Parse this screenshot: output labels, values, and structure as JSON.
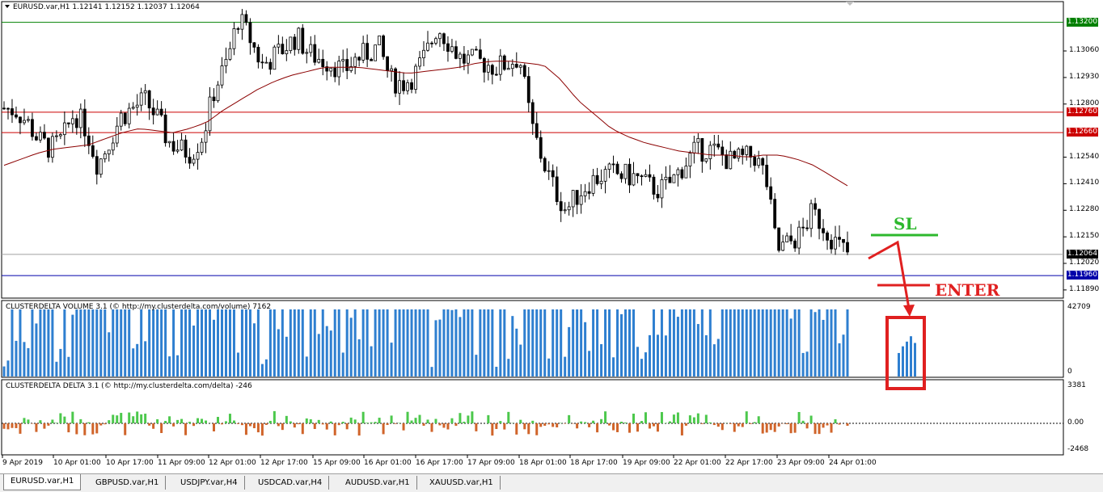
{
  "main_chart": {
    "header": "EURUSD.var,H1  1.12141 1.12152 1.12037 1.12064",
    "price_scale": [
      "1.13060",
      "1.12930",
      "1.12800",
      "1.12540",
      "1.12410",
      "1.12280",
      "1.12150",
      "1.12020",
      "1.11890"
    ],
    "level_labels": [
      {
        "text": "1.13200",
        "price": 1.132,
        "color": "#008000"
      },
      {
        "text": "1.12760",
        "price": 1.1276,
        "color": "#cc0000"
      },
      {
        "text": "1.12660",
        "price": 1.1266,
        "color": "#cc0000"
      },
      {
        "text": "1.12064",
        "price": 1.12064,
        "color": "#000000"
      },
      {
        "text": "1.11960",
        "price": 1.1196,
        "color": "#0000aa"
      }
    ],
    "annotations": {
      "sl": "SL",
      "enter": "ENTER"
    }
  },
  "volume_panel": {
    "header": "CLUSTERDELTA VOLUME 3.1 (© http://my.clusterdelta.com/volume) 7162",
    "scale_max": "42709",
    "scale_min": "0"
  },
  "delta_panel": {
    "header": "CLUSTERDELTA DELTA 3.1 (© http://my.clusterdelta.com/delta) -246",
    "scale_top": "3381",
    "scale_zero": "0.00",
    "scale_bottom": "-2468"
  },
  "time_axis": [
    "9 Apr 2019",
    "10 Apr 01:00",
    "10 Apr 17:00",
    "11 Apr 09:00",
    "12 Apr 01:00",
    "12 Apr 17:00",
    "15 Apr 09:00",
    "16 Apr 01:00",
    "16 Apr 17:00",
    "17 Apr 09:00",
    "18 Apr 01:00",
    "18 Apr 17:00",
    "19 Apr 09:00",
    "22 Apr 01:00",
    "22 Apr 17:00",
    "23 Apr 09:00",
    "24 Apr 01:00"
  ],
  "tabs": [
    "EURUSD.var,H1",
    "GBPUSD.var,H1",
    "USDJPY.var,H4",
    "USDCAD.var,H4",
    "AUDUSD.var,H1",
    "XAUUSD.var,H1"
  ],
  "colors": {
    "bull": "#000000",
    "bear": "#000000",
    "ma": "#8b0000",
    "volume_bar": "#2e7fd0",
    "delta_pos": "#4cc84c",
    "delta_neg": "#d0642a",
    "annot_green": "#2db82d",
    "annot_red": "#e02020"
  },
  "chart_data": [
    {
      "type": "candlestick",
      "title": "EURUSD.var,H1",
      "ylim": [
        1.1185,
        1.1325
      ],
      "close_path": [
        1.1278,
        1.1277,
        1.1271,
        1.1262,
        1.1258,
        1.1263,
        1.1276,
        1.1268,
        1.125,
        1.1262,
        1.1274,
        1.1278,
        1.1282,
        1.1274,
        1.1262,
        1.1258,
        1.1256,
        1.1265,
        1.1288,
        1.13,
        1.1322,
        1.1312,
        1.1299,
        1.1303,
        1.1308,
        1.1313,
        1.1305,
        1.1302,
        1.13,
        1.1296,
        1.1302,
        1.1305,
        1.1308,
        1.1292,
        1.129,
        1.1294,
        1.1304,
        1.1318,
        1.131,
        1.1302,
        1.1301,
        1.13,
        1.1298,
        1.13,
        1.1303,
        1.127,
        1.1252,
        1.1238,
        1.1228,
        1.1236,
        1.1242,
        1.1245,
        1.1246,
        1.1245,
        1.1244,
        1.124,
        1.1238,
        1.1242,
        1.125,
        1.1257,
        1.1258,
        1.1256,
        1.1252,
        1.1253,
        1.1255,
        1.1245,
        1.1208,
        1.1212,
        1.1216,
        1.1227,
        1.122,
        1.1212,
        1.1207
      ],
      "ma_path": [
        1.125,
        1.1253,
        1.1256,
        1.1258,
        1.1259,
        1.126,
        1.1263,
        1.1266,
        1.1268,
        1.1267,
        1.1266,
        1.1268,
        1.1271,
        1.1277,
        1.1282,
        1.1287,
        1.1291,
        1.1294,
        1.1296,
        1.1298,
        1.1298,
        1.1298,
        1.1297,
        1.1296,
        1.1295,
        1.1296,
        1.1297,
        1.1298,
        1.13,
        1.1301,
        1.1301,
        1.13,
        1.1299,
        1.1292,
        1.1282,
        1.1275,
        1.1268,
        1.1264,
        1.1261,
        1.1259,
        1.1257,
        1.1256,
        1.1255,
        1.1255,
        1.1254,
        1.1255,
        1.1255,
        1.1253,
        1.125,
        1.1245,
        1.124
      ]
    },
    {
      "type": "bar",
      "title": "CLUSTERDELTA VOLUME 3.1",
      "ylim": [
        0,
        42709
      ]
    },
    {
      "type": "bar",
      "title": "CLUSTERDELTA DELTA 3.1",
      "ylim": [
        -2468,
        3381
      ]
    }
  ]
}
